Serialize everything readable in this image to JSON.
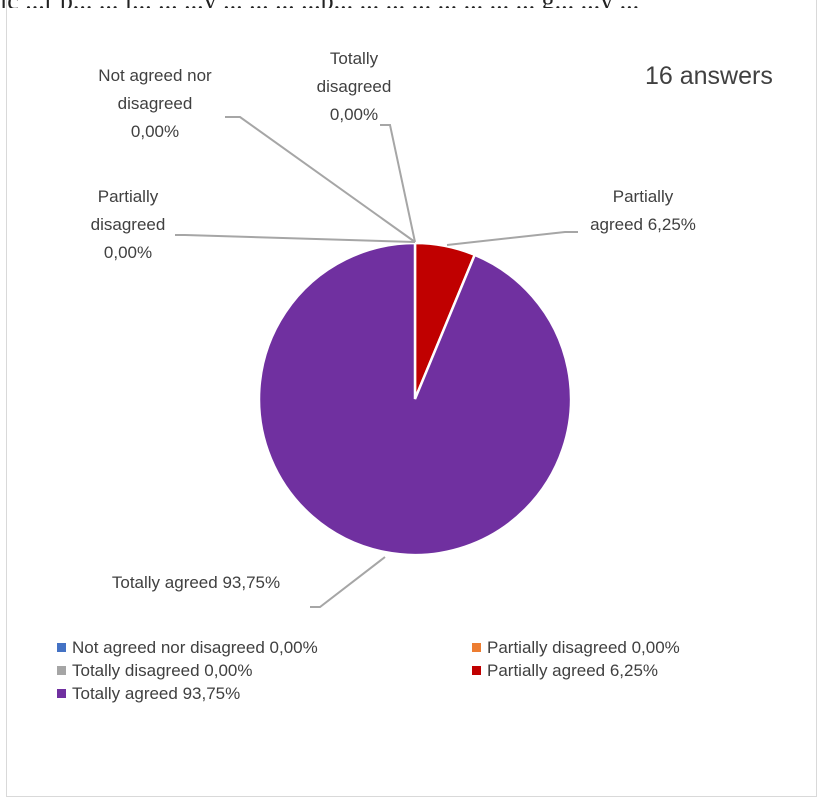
{
  "cutoff_text": "ic ...r p... ... l... ... ...y ... ... ... ...p... ... ... ... ... ... ... ... g... ...y ...",
  "chart_data": {
    "type": "pie",
    "subtitle": "16 answers",
    "slices": [
      {
        "name": "Not agreed nor disagreed",
        "value": 0.0,
        "display": "0,00%",
        "color": "#4472c4",
        "label_lines": [
          "Not agreed nor",
          "disagreed",
          "0,00%"
        ]
      },
      {
        "name": "Partially disagreed",
        "value": 0.0,
        "display": "0,00%",
        "color": "#ed7d31",
        "label_lines": [
          "Partially",
          "disagreed",
          "0,00%"
        ]
      },
      {
        "name": "Totally disagreed",
        "value": 0.0,
        "display": "0,00%",
        "color": "#a5a5a5",
        "label_lines": [
          "Totally",
          "disagreed",
          "0,00%"
        ]
      },
      {
        "name": "Partially agreed",
        "value": 6.25,
        "display": "6,25%",
        "color": "#c00000",
        "label_lines": [
          "Partially",
          "agreed 6,25%"
        ]
      },
      {
        "name": "Totally agreed",
        "value": 93.75,
        "display": "93,75%",
        "color": "#7030a0",
        "label_lines": [
          "Totally agreed 93,75%"
        ]
      }
    ],
    "legend": [
      "Not agreed nor disagreed 0,00%",
      "Partially disagreed 0,00%",
      "Totally disagreed 0,00%",
      "Partially agreed 6,25%",
      "Totally agreed 93,75%"
    ],
    "legend_colors": [
      "#4472c4",
      "#ed7d31",
      "#a5a5a5",
      "#c00000",
      "#7030a0"
    ],
    "legend_placement": "bottom"
  }
}
